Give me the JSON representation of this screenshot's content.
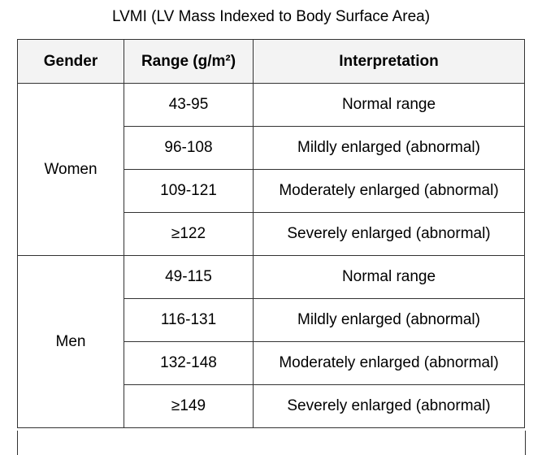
{
  "title": "LVMI (LV Mass Indexed to Body Surface Area)",
  "headers": {
    "gender": "Gender",
    "range": "Range (g/m²)",
    "interpretation": "Interpretation"
  },
  "groups": [
    {
      "gender": "Women",
      "rows": [
        {
          "range": "43-95",
          "interpretation": "Normal range"
        },
        {
          "range": "96-108",
          "interpretation": "Mildly enlarged (abnormal)"
        },
        {
          "range": "109-121",
          "interpretation": "Moderately enlarged (abnormal)"
        },
        {
          "range": "≥122",
          "interpretation": "Severely enlarged (abnormal)"
        }
      ]
    },
    {
      "gender": "Men",
      "rows": [
        {
          "range": "49-115",
          "interpretation": "Normal range"
        },
        {
          "range": "116-131",
          "interpretation": "Mildly enlarged (abnormal)"
        },
        {
          "range": "132-148",
          "interpretation": "Moderately enlarged (abnormal)"
        },
        {
          "range": "≥149",
          "interpretation": "Severely enlarged (abnormal)"
        }
      ]
    }
  ]
}
